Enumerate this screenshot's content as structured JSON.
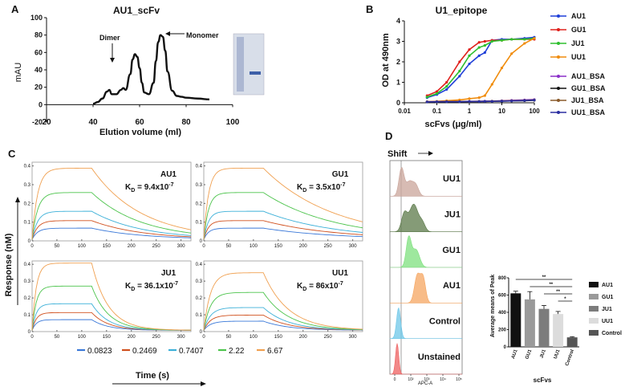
{
  "panels": {
    "A": "A",
    "B": "B",
    "C": "C",
    "D": "D"
  },
  "chart_data": [
    {
      "id": "A",
      "type": "line",
      "title": "AU1_scFv",
      "xlabel": "Elution volume (ml)",
      "ylabel": "mAU",
      "xlim": [
        20,
        100
      ],
      "ylim": [
        -20,
        100
      ],
      "xticks": [
        "20",
        "40",
        "60",
        "80",
        "100"
      ],
      "yticks": [
        "-20",
        "0",
        "20",
        "40",
        "60",
        "80",
        "100"
      ],
      "annotations": {
        "dimer": "Dimer",
        "monomer": "Monomer"
      },
      "x": [
        40,
        42,
        44,
        46,
        47,
        48,
        50,
        52,
        53,
        54,
        56,
        57,
        58,
        59,
        60,
        61,
        62,
        64,
        66,
        67,
        68,
        69,
        70,
        71,
        72,
        74,
        76,
        78,
        80,
        85,
        90
      ],
      "y": [
        1,
        3,
        7,
        15,
        17,
        12,
        12,
        17,
        19,
        17,
        35,
        52,
        58,
        55,
        42,
        25,
        14,
        12,
        25,
        50,
        72,
        80,
        78,
        62,
        38,
        16,
        10,
        9,
        8,
        7,
        6
      ]
    },
    {
      "id": "B",
      "type": "line",
      "title": "U1_epitope",
      "xlabel": "scFvs (μg/ml)",
      "ylabel": "OD at 490nm",
      "xscale": "log",
      "xlim": [
        0.01,
        100
      ],
      "ylim": [
        0,
        4
      ],
      "xticks": [
        "0.01",
        "0.1",
        "1",
        "10",
        "100"
      ],
      "yticks": [
        "0",
        "1",
        "2",
        "3",
        "4"
      ],
      "x": [
        0.05,
        0.1,
        0.2,
        0.5,
        1,
        2,
        3,
        5,
        10,
        20,
        50,
        100
      ],
      "series": [
        {
          "name": "AU1",
          "color": "#1f3fd8",
          "y": [
            0.25,
            0.4,
            0.65,
            1.3,
            1.9,
            2.3,
            2.45,
            3.05,
            3.1,
            3.1,
            3.15,
            3.2
          ]
        },
        {
          "name": "GU1",
          "color": "#e0201c",
          "y": [
            0.35,
            0.55,
            1.0,
            2.0,
            2.6,
            2.95,
            3.0,
            3.05,
            3.05,
            3.1,
            3.1,
            3.1
          ]
        },
        {
          "name": "JU1",
          "color": "#2fbf2f",
          "y": [
            0.28,
            0.45,
            0.8,
            1.55,
            2.3,
            2.7,
            2.8,
            3.0,
            3.05,
            3.1,
            3.1,
            3.15
          ]
        },
        {
          "name": "UU1",
          "color": "#f08c0c",
          "y": [
            0.05,
            0.07,
            0.1,
            0.14,
            0.2,
            0.25,
            0.35,
            0.9,
            1.7,
            2.4,
            2.9,
            3.15
          ]
        },
        {
          "name": "AU1_BSA",
          "color": "#8b2fc9",
          "y": [
            0.05,
            0.05,
            0.06,
            0.06,
            0.07,
            0.07,
            0.08,
            0.08,
            0.1,
            0.12,
            0.14,
            0.16
          ]
        },
        {
          "name": "GU1_BSA",
          "color": "#111111",
          "y": [
            0.04,
            0.04,
            0.05,
            0.05,
            0.06,
            0.06,
            0.06,
            0.07,
            0.08,
            0.09,
            0.1,
            0.12
          ]
        },
        {
          "name": "JU1_BSA",
          "color": "#8a5a2b",
          "y": [
            0.05,
            0.05,
            0.06,
            0.06,
            0.06,
            0.07,
            0.07,
            0.08,
            0.09,
            0.1,
            0.12,
            0.14
          ]
        },
        {
          "name": "UU1_BSA",
          "color": "#2b2fa0",
          "y": [
            0.04,
            0.05,
            0.05,
            0.05,
            0.06,
            0.06,
            0.07,
            0.07,
            0.08,
            0.09,
            0.11,
            0.13
          ]
        }
      ]
    },
    {
      "id": "C",
      "type": "line",
      "ylabel": "Response (nM)",
      "xlabel": "Time (s)",
      "xlim": [
        0,
        320
      ],
      "ylim": [
        0,
        0.42
      ],
      "xticks": [
        "0",
        "50",
        "100",
        "150",
        "200",
        "250",
        "300"
      ],
      "yticks": [
        "0",
        "0.1",
        "0.2",
        "0.3",
        "0.4"
      ],
      "concentrations": [
        {
          "name": "0.0823",
          "color": "#3a78d8",
          "amp": 0.06
        },
        {
          "name": "0.2469",
          "color": "#d0501e",
          "amp": 0.1
        },
        {
          "name": "0.7407",
          "color": "#3cb0d8",
          "amp": 0.15
        },
        {
          "name": "2.22",
          "color": "#4cc44c",
          "amp": 0.25
        },
        {
          "name": "6.67",
          "color": "#f0a050",
          "amp": 0.38
        }
      ],
      "subplots": [
        {
          "name": "AU1",
          "kd_prefix": "K",
          "kd_sub": "D",
          "kd_value": " = 9.4x10",
          "kd_exp": "-7",
          "ka": 0.03,
          "kd": 0.01,
          "scale": 1.0
        },
        {
          "name": "GU1",
          "kd_prefix": "K",
          "kd_sub": "D",
          "kd_value": " = 3.5x10",
          "kd_exp": "-7",
          "ka": 0.035,
          "kd": 0.007,
          "scale": 1.0
        },
        {
          "name": "JU1",
          "kd_prefix": "K",
          "kd_sub": "D",
          "kd_value": " = 36.1x10",
          "kd_exp": "-7",
          "ka": 0.04,
          "kd": 0.03,
          "scale": 1.05
        },
        {
          "name": "UU1",
          "kd_prefix": "K",
          "kd_sub": "D",
          "kd_value": " = 86x10",
          "kd_exp": "-7",
          "ka": 0.025,
          "kd": 0.02,
          "scale": 0.9
        }
      ]
    },
    {
      "id": "D-hist",
      "type": "area",
      "title": "Shift",
      "xlabel": "APC-A",
      "xticks": [
        "0",
        "10²",
        "10³",
        "10⁴",
        "10⁵"
      ],
      "rows": [
        {
          "name": "UU1",
          "color": "#c9a49a",
          "peaks": [
            [
              0.16,
              0.85,
              0.035
            ],
            [
              0.27,
              0.45,
              0.05
            ],
            [
              0.36,
              0.3,
              0.04
            ]
          ]
        },
        {
          "name": "JU1",
          "color": "#5c7a4a",
          "peaks": [
            [
              0.2,
              0.55,
              0.04
            ],
            [
              0.33,
              0.85,
              0.06
            ],
            [
              0.45,
              0.25,
              0.04
            ]
          ]
        },
        {
          "name": "GU1",
          "color": "#7ee07e",
          "peaks": [
            [
              0.26,
              0.9,
              0.035
            ],
            [
              0.36,
              0.55,
              0.05
            ]
          ]
        },
        {
          "name": "AU1",
          "color": "#f5a560",
          "peaks": [
            [
              0.38,
              0.85,
              0.04
            ],
            [
              0.46,
              0.75,
              0.035
            ]
          ]
        },
        {
          "name": "Control",
          "color": "#6dc7e8",
          "peaks": [
            [
              0.12,
              0.95,
              0.028
            ]
          ]
        },
        {
          "name": "Unstained",
          "color": "#ee6060",
          "peaks": [
            [
              0.1,
              0.95,
              0.022
            ]
          ]
        }
      ]
    },
    {
      "id": "D-bar",
      "type": "bar",
      "ylabel": "Average means of Peak",
      "xlabel": "scFvs",
      "ylim": [
        0,
        800
      ],
      "yticks": [
        "0",
        "200",
        "400",
        "600",
        "800"
      ],
      "categories": [
        "AU1",
        "GU1",
        "JU1",
        "UU1",
        "Control"
      ],
      "values": [
        620,
        550,
        440,
        380,
        110
      ],
      "errors": [
        25,
        90,
        40,
        30,
        8
      ],
      "colors": [
        "#111111",
        "#9a9a9a",
        "#7c7c7c",
        "#dcdcdc",
        "#555555"
      ],
      "significance": [
        "**",
        "**",
        "**",
        "*"
      ],
      "legend": [
        "AU1",
        "GU1",
        "JU1",
        "UU1",
        "Control"
      ]
    }
  ]
}
